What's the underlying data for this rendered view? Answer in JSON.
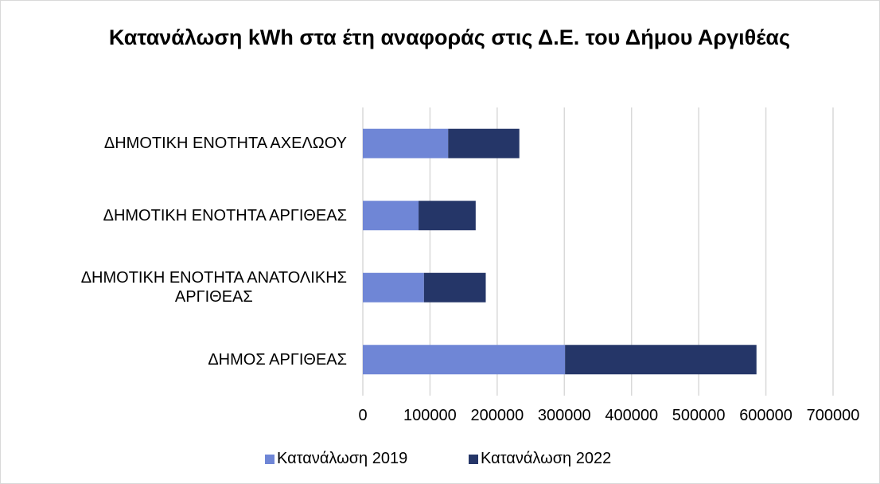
{
  "chart_data": {
    "type": "stacked_barh",
    "title": "Κατανάλωση kWh στα έτη αναφοράς στις Δ.Ε. του Δήμου Αργιθέας",
    "categories": [
      "ΔΗΜΟΤΙΚΗ ΕΝΟΤΗΤΑ ΑΧΕΛΩΟΥ",
      "ΔΗΜΟΤΙΚΗ ΕΝΟΤΗΤΑ ΑΡΓΙΘΕΑΣ",
      "ΔΗΜΟΤΙΚΗ ΕΝΟΤΗΤΑ ΑΝΑΤΟΛΙΚΗΣ\nΑΡΓΙΘΕΑΣ",
      "ΔΗΜΟΣ ΑΡΓΙΘΕΑΣ"
    ],
    "series": [
      {
        "name": "Κατανάλωση 2019",
        "color": "#6f86d6",
        "values": [
          127000,
          83000,
          91000,
          301000
        ]
      },
      {
        "name": "Κατανάλωση 2022",
        "color": "#253668",
        "values": [
          106000,
          85000,
          92000,
          285000
        ]
      }
    ],
    "xlim": [
      0,
      700000
    ],
    "xticks": [
      0,
      100000,
      200000,
      300000,
      400000,
      500000,
      600000,
      700000
    ],
    "grid": true,
    "legend": "bottom"
  }
}
